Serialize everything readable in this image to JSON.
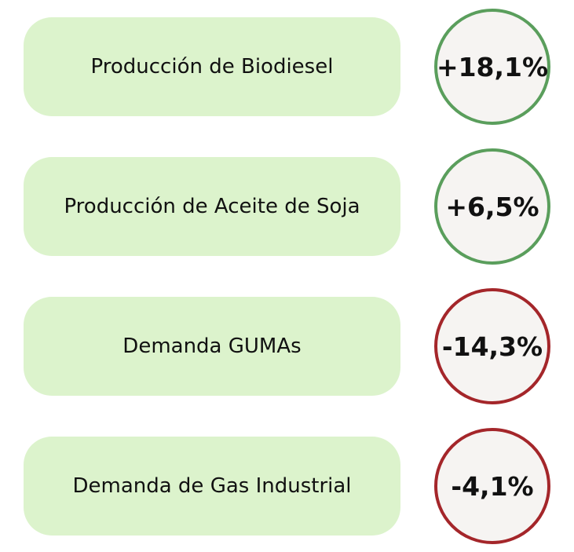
{
  "items": [
    {
      "label": "Producción de Biodiesel",
      "value": "+18,1%",
      "color": "#5a9e5c"
    },
    {
      "label": "Producción de Aceite de Soja",
      "value": "+6,5%",
      "color": "#5a9e5c"
    },
    {
      "label": "Demanda GUMAs",
      "value": "-14,3%",
      "color": "#a4262a"
    },
    {
      "label": "Demanda de Gas Industrial",
      "value": "-4,1%",
      "color": "#a4262a"
    }
  ]
}
